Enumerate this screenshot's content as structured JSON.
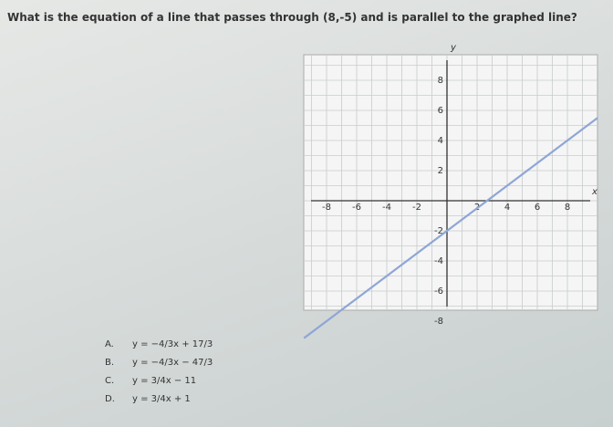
{
  "question": "What is the equation of a line that passes through (8,-5) and is parallel to the graphed line?",
  "graph": {
    "x_label": "x",
    "y_label": "y",
    "x_ticks": [
      "-8",
      "-6",
      "-4",
      "-2",
      "2",
      "4",
      "6",
      "8"
    ],
    "y_ticks": [
      "8",
      "6",
      "4",
      "2",
      "-2",
      "-4",
      "-6",
      "-8"
    ]
  },
  "choices": [
    {
      "letter": "A.",
      "equation": "y = −4/3x + 17/3"
    },
    {
      "letter": "B.",
      "equation": "y = −4/3x − 47/3"
    },
    {
      "letter": "C.",
      "equation": "y = 3/4x − 11"
    },
    {
      "letter": "D.",
      "equation": "y = 3/4x + 1"
    }
  ]
}
